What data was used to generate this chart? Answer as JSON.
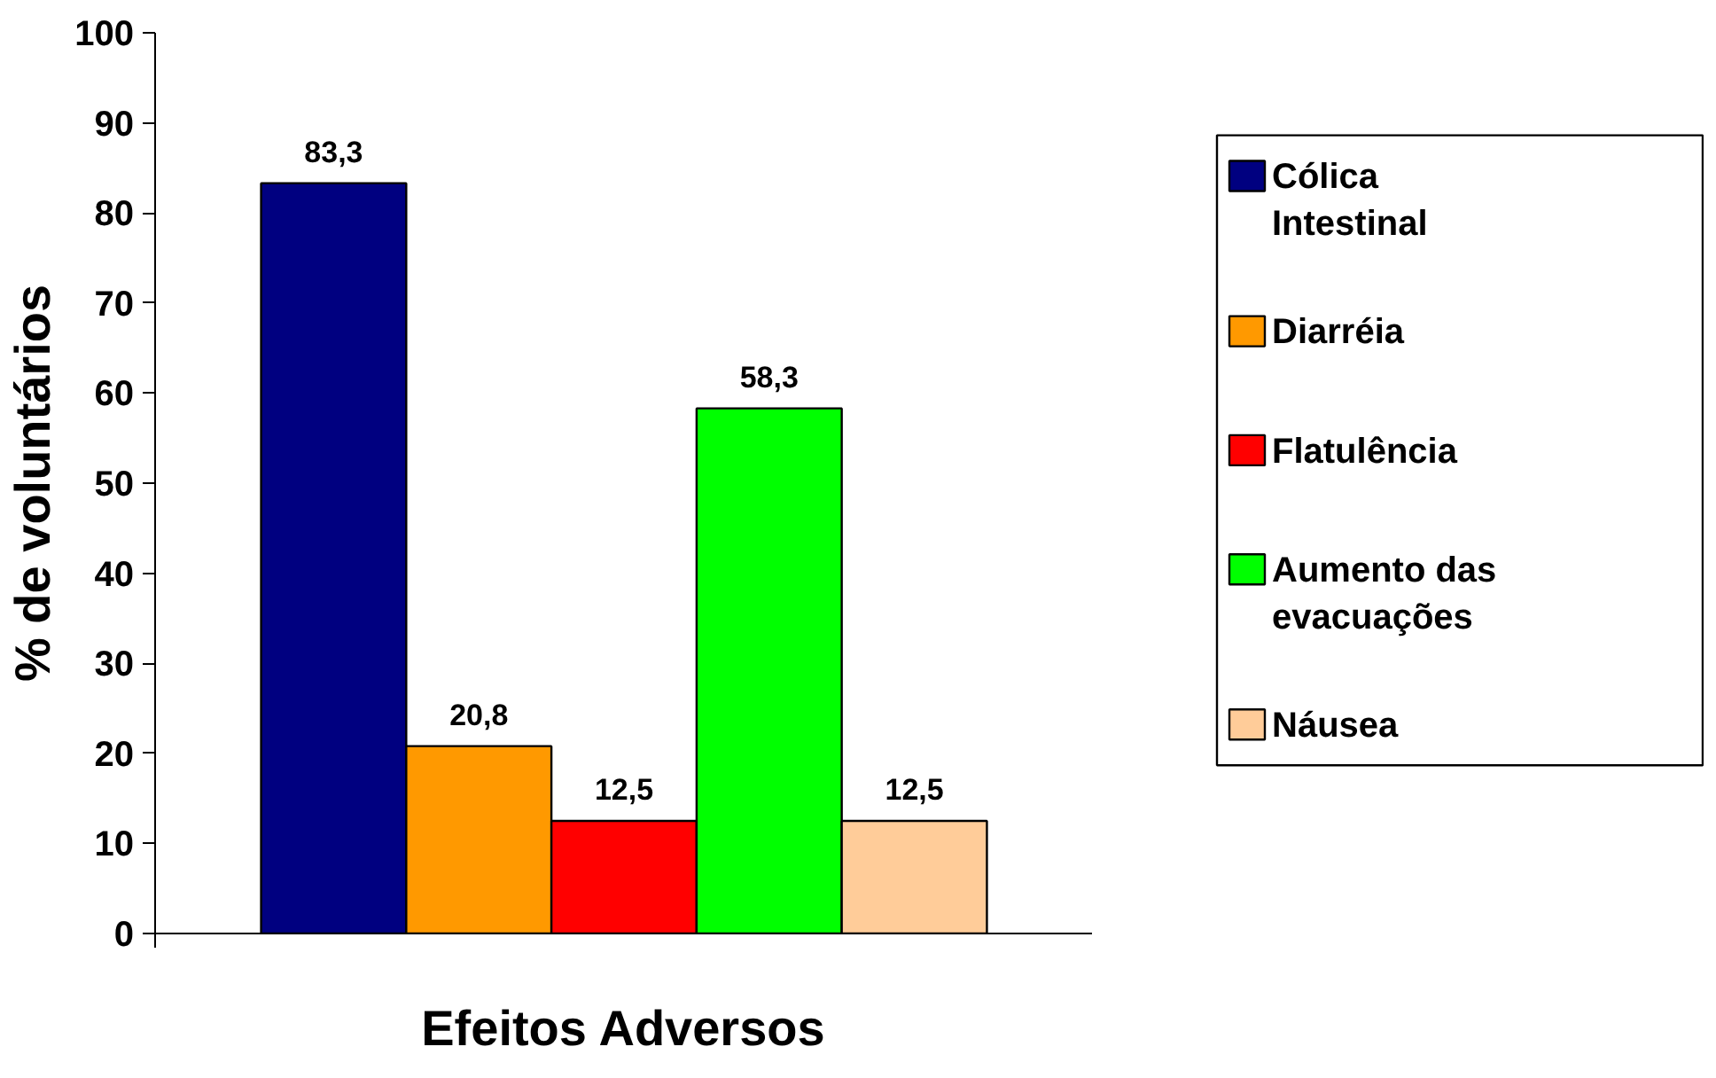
{
  "chart_data": {
    "type": "bar",
    "xlabel": "Efeitos Adversos",
    "ylabel": "% de voluntários",
    "categories": [
      null
    ],
    "series": [
      {
        "name": "Cólica Intestinal",
        "color": "#000080",
        "values": [
          83.3
        ],
        "value_labels": [
          "83,3"
        ]
      },
      {
        "name": "Diarréia",
        "color": "#ff9900",
        "values": [
          20.8
        ],
        "value_labels": [
          "20,8"
        ]
      },
      {
        "name": "Flatulência",
        "color": "#ff0000",
        "values": [
          12.5
        ],
        "value_labels": [
          "12,5"
        ]
      },
      {
        "name": "Aumento das evacuações",
        "color": "#00ff00",
        "values": [
          58.3
        ],
        "value_labels": [
          "58,3"
        ]
      },
      {
        "name": "Náusea",
        "color": "#ffcc99",
        "values": [
          12.5
        ],
        "value_labels": [
          "12,5"
        ]
      }
    ],
    "ylim": [
      0,
      100
    ],
    "yticks": [
      0,
      10,
      20,
      30,
      40,
      50,
      60,
      70,
      80,
      90,
      100
    ],
    "grid": false,
    "legend": "right"
  }
}
